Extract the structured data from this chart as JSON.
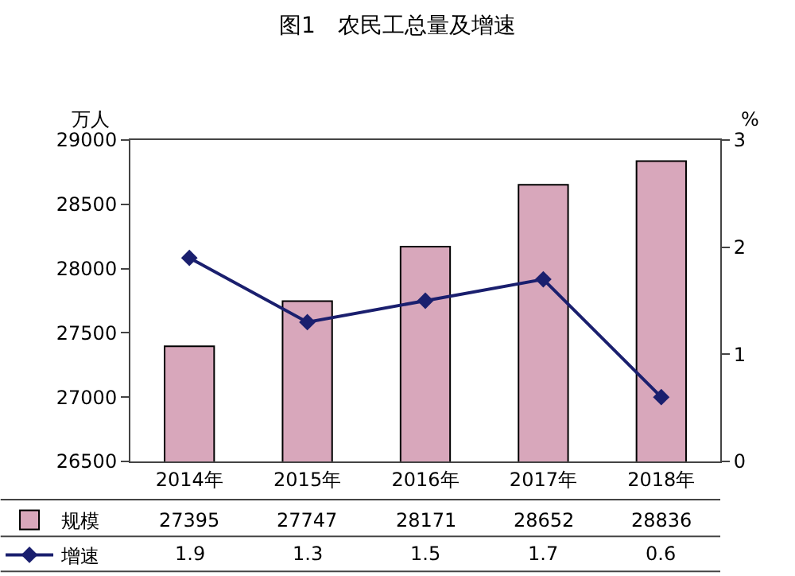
{
  "chart_data": {
    "type": "bar",
    "title": "图1　农民工总量及增速",
    "ylabel": "万人",
    "y2label": "%",
    "categories": [
      "2014年",
      "2015年",
      "2016年",
      "2017年",
      "2018年"
    ],
    "series": [
      {
        "name": "规模",
        "color": "#d8a7bb",
        "values": [
          27395,
          27747,
          28171,
          28652,
          28836
        ]
      },
      {
        "name": "增速",
        "type": "line",
        "axis": "y2",
        "color": "#1a1f6e",
        "marker": "diamond",
        "values": [
          1.9,
          1.3,
          1.5,
          1.7,
          0.6
        ]
      }
    ],
    "ylim": [
      26500,
      29000
    ],
    "yticks": [
      26500,
      27000,
      27500,
      28000,
      28500,
      29000
    ],
    "y2lim": [
      0,
      3
    ],
    "y2ticks": [
      0,
      1,
      2,
      3
    ],
    "data_labels": true,
    "legend": "bottom left"
  }
}
